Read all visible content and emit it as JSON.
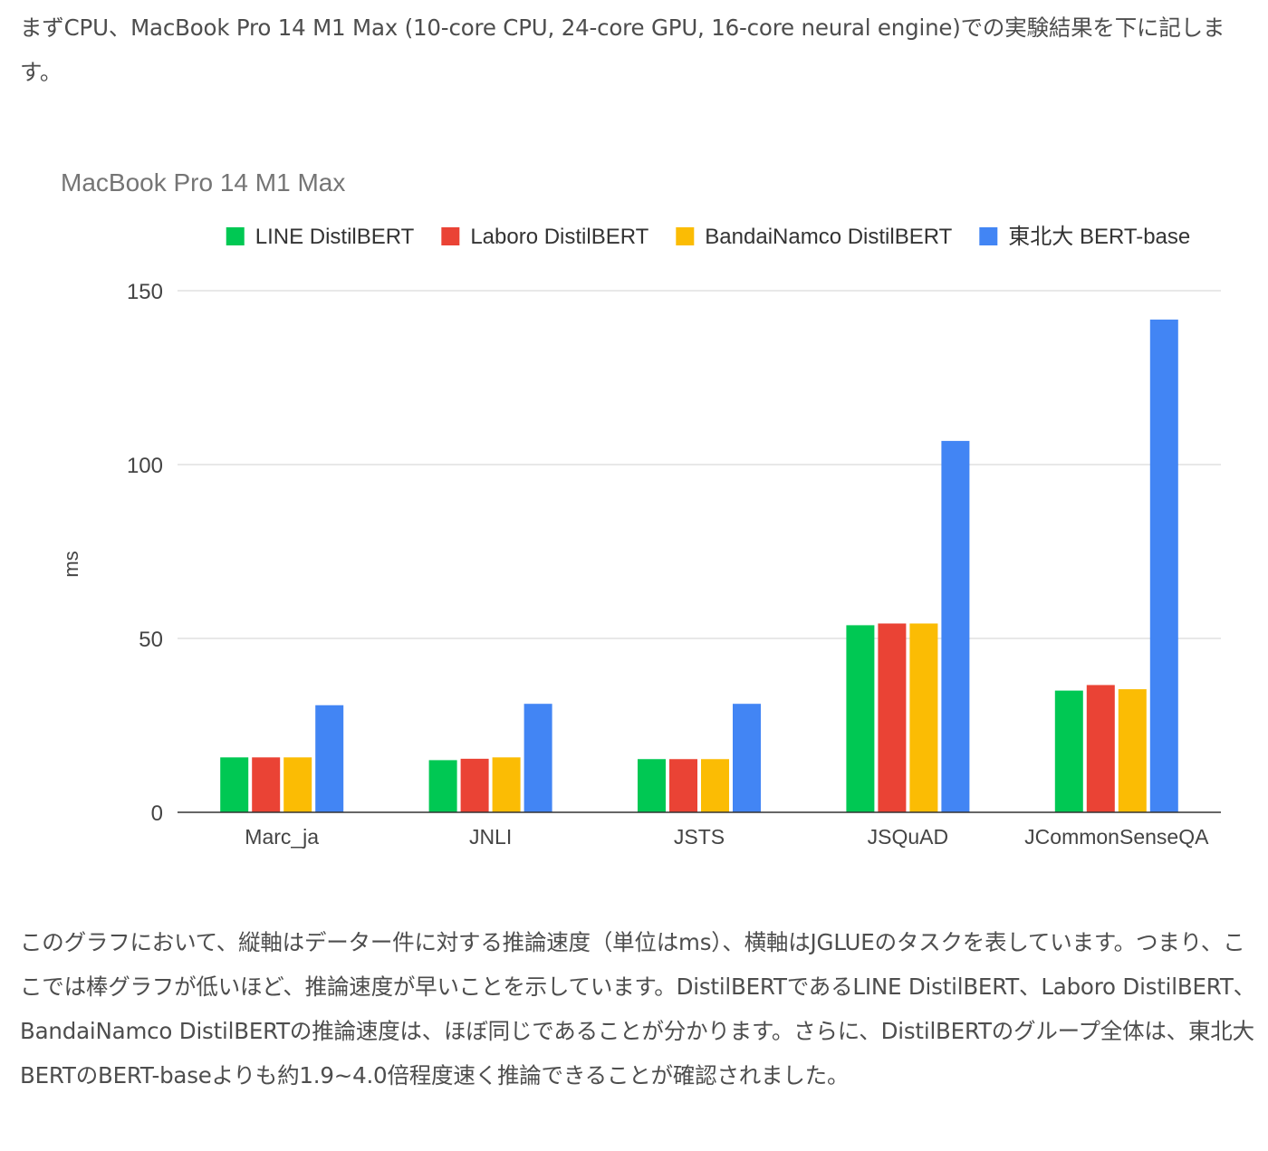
{
  "intro_text": "まずCPU、MacBook Pro 14 M1 Max (10-core CPU, 24-core GPU, 16-core neural engine)での実験結果を下に記します。",
  "outro_text": "このグラフにおいて、縦軸はデーター件に対する推論速度（単位はms）、横軸はJGLUEのタスクを表しています。つまり、ここでは棒グラフが低いほど、推論速度が早いことを示しています。DistilBERTであるLINE DistilBERT、Laboro DistilBERT、BandaiNamco DistilBERTの推論速度は、ほぼ同じであることが分かります。さらに、DistilBERTのグループ全体は、東北大BERTのBERT-baseよりも約1.9~4.0倍程度速く推論できることが確認されました。",
  "chart_data": {
    "type": "bar",
    "title": "MacBook Pro 14 M1 Max",
    "ylabel": "ms",
    "xlabel": "",
    "ylim": [
      0,
      150
    ],
    "yticks": [
      0,
      50,
      100,
      150
    ],
    "grid": true,
    "legend_position": "top",
    "categories": [
      "Marc_ja",
      "JNLI",
      "JSTS",
      "JSQuAD",
      "JCommonSenseQA"
    ],
    "series": [
      {
        "name": "LINE DistilBERT",
        "color": "#00c853",
        "values": [
          15.8,
          15.0,
          15.3,
          53.8,
          35.0
        ]
      },
      {
        "name": "Laboro DistilBERT",
        "color": "#ea4335",
        "values": [
          15.8,
          15.4,
          15.3,
          54.3,
          36.6
        ]
      },
      {
        "name": "BandaiNamco DistilBERT",
        "color": "#fbbc04",
        "values": [
          15.8,
          15.8,
          15.3,
          54.3,
          35.4
        ]
      },
      {
        "name": "東北大 BERT-base",
        "color": "#4285f4",
        "values": [
          30.8,
          31.2,
          31.2,
          106.8,
          141.7
        ]
      }
    ]
  }
}
